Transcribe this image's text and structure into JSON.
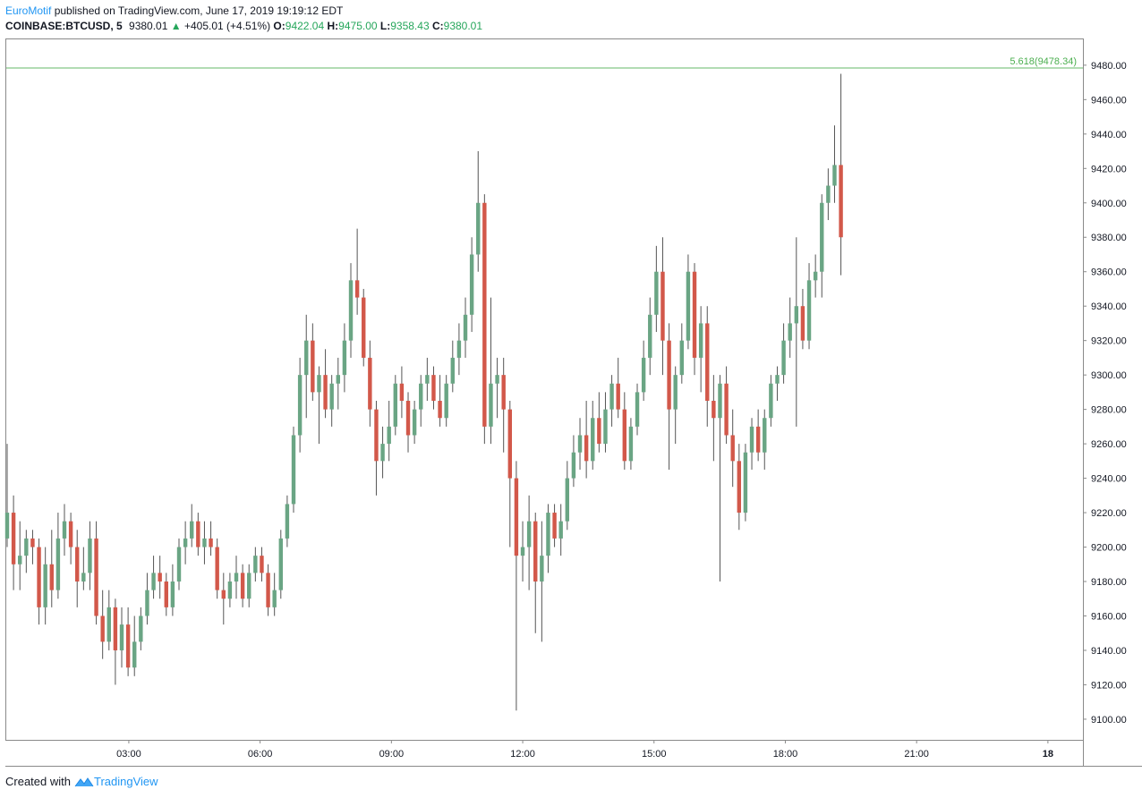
{
  "header": {
    "author": "EuroMotif",
    "published_text": "published on TradingView.com, June 17, 2019 19:19:12 EDT",
    "symbol": "COINBASE:BTCUSD, 5",
    "last_price": "9380.01",
    "change_arrow": "▲",
    "change": "+405.01 (+4.51%)",
    "open_label": "O:",
    "open": "9422.04",
    "high_label": "H:",
    "high": "9475.00",
    "low_label": "L:",
    "low": "9358.43",
    "close_label": "C:",
    "close": "9380.01"
  },
  "footer": {
    "created_text": "Created with",
    "brand": "TradingView"
  },
  "colors": {
    "up": "#6aa584",
    "down": "#d2584a",
    "wick": "#555555",
    "fib_line": "#4caf50",
    "fib_label": "#4caf50",
    "header_author": "#2196f3",
    "header_values": "#26a65b"
  },
  "chart_data": {
    "type": "candlestick",
    "timeframe": "5",
    "y_ticks": [
      9100,
      9120,
      9140,
      9160,
      9180,
      9200,
      9220,
      9240,
      9260,
      9280,
      9300,
      9320,
      9340,
      9360,
      9380,
      9400,
      9420,
      9440,
      9460,
      9480
    ],
    "y_tick_labels": [
      "9100.00",
      "9120.00",
      "9140.00",
      "9160.00",
      "9180.00",
      "9200.00",
      "9220.00",
      "9240.00",
      "9260.00",
      "9280.00",
      "9300.00",
      "9320.00",
      "9340.00",
      "9360.00",
      "9380.00",
      "9400.00",
      "9420.00",
      "9440.00",
      "9460.00",
      "9480.00"
    ],
    "ylim": [
      9088,
      9495
    ],
    "x_ticks": [
      {
        "label": "03:00",
        "hour": 3
      },
      {
        "label": "06:00",
        "hour": 6
      },
      {
        "label": "09:00",
        "hour": 9
      },
      {
        "label": "12:00",
        "hour": 12
      },
      {
        "label": "15:00",
        "hour": 15
      },
      {
        "label": "18:00",
        "hour": 18
      },
      {
        "label": "21:00",
        "hour": 21
      },
      {
        "label": "18",
        "hour": 24
      }
    ],
    "xlim_hours": [
      0.2,
      24.8
    ],
    "fib_level": {
      "label": "5.618(9478.34)",
      "value": 9478.34
    },
    "candles": [
      [
        9205,
        9260,
        9200,
        9220
      ],
      [
        9220,
        9230,
        9175,
        9190
      ],
      [
        9190,
        9215,
        9175,
        9195
      ],
      [
        9195,
        9210,
        9185,
        9205
      ],
      [
        9205,
        9210,
        9190,
        9200
      ],
      [
        9200,
        9205,
        9155,
        9165
      ],
      [
        9165,
        9200,
        9155,
        9190
      ],
      [
        9190,
        9210,
        9165,
        9175
      ],
      [
        9175,
        9220,
        9170,
        9205
      ],
      [
        9205,
        9225,
        9195,
        9215
      ],
      [
        9215,
        9220,
        9190,
        9200
      ],
      [
        9200,
        9210,
        9165,
        9180
      ],
      [
        9180,
        9200,
        9175,
        9185
      ],
      [
        9185,
        9215,
        9175,
        9205
      ],
      [
        9205,
        9215,
        9155,
        9160
      ],
      [
        9160,
        9175,
        9135,
        9145
      ],
      [
        9145,
        9175,
        9140,
        9165
      ],
      [
        9165,
        9170,
        9120,
        9140
      ],
      [
        9140,
        9165,
        9130,
        9155
      ],
      [
        9155,
        9165,
        9125,
        9130
      ],
      [
        9130,
        9160,
        9125,
        9145
      ],
      [
        9145,
        9165,
        9140,
        9160
      ],
      [
        9160,
        9185,
        9155,
        9175
      ],
      [
        9175,
        9195,
        9170,
        9185
      ],
      [
        9185,
        9195,
        9170,
        9180
      ],
      [
        9180,
        9185,
        9160,
        9165
      ],
      [
        9165,
        9190,
        9160,
        9180
      ],
      [
        9180,
        9205,
        9175,
        9200
      ],
      [
        9200,
        9215,
        9190,
        9205
      ],
      [
        9205,
        9225,
        9200,
        9215
      ],
      [
        9215,
        9220,
        9195,
        9200
      ],
      [
        9200,
        9215,
        9190,
        9205
      ],
      [
        9205,
        9215,
        9195,
        9200
      ],
      [
        9200,
        9205,
        9170,
        9175
      ],
      [
        9175,
        9185,
        9155,
        9170
      ],
      [
        9170,
        9185,
        9165,
        9180
      ],
      [
        9180,
        9195,
        9170,
        9185
      ],
      [
        9185,
        9190,
        9165,
        9170
      ],
      [
        9170,
        9190,
        9165,
        9185
      ],
      [
        9185,
        9200,
        9180,
        9195
      ],
      [
        9195,
        9200,
        9180,
        9185
      ],
      [
        9185,
        9190,
        9160,
        9165
      ],
      [
        9165,
        9185,
        9160,
        9175
      ],
      [
        9175,
        9210,
        9170,
        9205
      ],
      [
        9205,
        9230,
        9200,
        9225
      ],
      [
        9225,
        9270,
        9220,
        9265
      ],
      [
        9265,
        9310,
        9255,
        9300
      ],
      [
        9300,
        9335,
        9275,
        9320
      ],
      [
        9320,
        9330,
        9285,
        9290
      ],
      [
        9290,
        9305,
        9260,
        9300
      ],
      [
        9300,
        9315,
        9275,
        9280
      ],
      [
        9280,
        9300,
        9270,
        9295
      ],
      [
        9295,
        9310,
        9280,
        9300
      ],
      [
        9300,
        9330,
        9290,
        9320
      ],
      [
        9320,
        9365,
        9310,
        9355
      ],
      [
        9355,
        9385,
        9335,
        9345
      ],
      [
        9345,
        9350,
        9305,
        9310
      ],
      [
        9310,
        9320,
        9270,
        9280
      ],
      [
        9280,
        9285,
        9230,
        9250
      ],
      [
        9250,
        9270,
        9240,
        9260
      ],
      [
        9260,
        9285,
        9250,
        9270
      ],
      [
        9270,
        9300,
        9265,
        9295
      ],
      [
        9295,
        9305,
        9275,
        9285
      ],
      [
        9285,
        9290,
        9255,
        9265
      ],
      [
        9265,
        9285,
        9260,
        9280
      ],
      [
        9280,
        9300,
        9270,
        9295
      ],
      [
        9295,
        9310,
        9285,
        9300
      ],
      [
        9300,
        9305,
        9280,
        9285
      ],
      [
        9285,
        9300,
        9270,
        9275
      ],
      [
        9275,
        9300,
        9270,
        9295
      ],
      [
        9295,
        9320,
        9290,
        9310
      ],
      [
        9310,
        9330,
        9300,
        9320
      ],
      [
        9320,
        9345,
        9310,
        9335
      ],
      [
        9335,
        9380,
        9325,
        9370
      ],
      [
        9370,
        9430,
        9360,
        9400
      ],
      [
        9400,
        9405,
        9260,
        9270
      ],
      [
        9270,
        9345,
        9260,
        9295
      ],
      [
        9295,
        9310,
        9275,
        9300
      ],
      [
        9300,
        9310,
        9255,
        9280
      ],
      [
        9280,
        9285,
        9200,
        9240
      ],
      [
        9240,
        9250,
        9105,
        9195
      ],
      [
        9195,
        9215,
        9180,
        9200
      ],
      [
        9200,
        9230,
        9175,
        9215
      ],
      [
        9215,
        9220,
        9150,
        9180
      ],
      [
        9180,
        9215,
        9145,
        9195
      ],
      [
        9195,
        9225,
        9185,
        9220
      ],
      [
        9220,
        9225,
        9200,
        9205
      ],
      [
        9205,
        9225,
        9195,
        9215
      ],
      [
        9215,
        9250,
        9210,
        9240
      ],
      [
        9240,
        9265,
        9235,
        9255
      ],
      [
        9255,
        9275,
        9245,
        9265
      ],
      [
        9265,
        9285,
        9240,
        9250
      ],
      [
        9250,
        9285,
        9245,
        9275
      ],
      [
        9275,
        9290,
        9255,
        9260
      ],
      [
        9260,
        9290,
        9255,
        9280
      ],
      [
        9280,
        9300,
        9270,
        9295
      ],
      [
        9295,
        9310,
        9275,
        9280
      ],
      [
        9280,
        9290,
        9245,
        9250
      ],
      [
        9250,
        9275,
        9245,
        9270
      ],
      [
        9270,
        9295,
        9265,
        9290
      ],
      [
        9290,
        9320,
        9285,
        9310
      ],
      [
        9310,
        9345,
        9300,
        9335
      ],
      [
        9335,
        9375,
        9325,
        9360
      ],
      [
        9360,
        9380,
        9300,
        9320
      ],
      [
        9320,
        9330,
        9245,
        9280
      ],
      [
        9280,
        9305,
        9260,
        9300
      ],
      [
        9300,
        9330,
        9295,
        9320
      ],
      [
        9320,
        9370,
        9315,
        9360
      ],
      [
        9360,
        9365,
        9300,
        9310
      ],
      [
        9310,
        9340,
        9290,
        9330
      ],
      [
        9330,
        9340,
        9270,
        9285
      ],
      [
        9285,
        9300,
        9250,
        9275
      ],
      [
        9275,
        9300,
        9180,
        9295
      ],
      [
        9295,
        9305,
        9260,
        9265
      ],
      [
        9265,
        9280,
        9235,
        9250
      ],
      [
        9250,
        9260,
        9210,
        9220
      ],
      [
        9220,
        9260,
        9215,
        9255
      ],
      [
        9255,
        9275,
        9245,
        9270
      ],
      [
        9270,
        9280,
        9250,
        9255
      ],
      [
        9255,
        9280,
        9245,
        9275
      ],
      [
        9275,
        9300,
        9270,
        9295
      ],
      [
        9295,
        9305,
        9285,
        9300
      ],
      [
        9300,
        9330,
        9295,
        9320
      ],
      [
        9320,
        9345,
        9310,
        9330
      ],
      [
        9330,
        9380,
        9270,
        9340
      ],
      [
        9340,
        9350,
        9315,
        9320
      ],
      [
        9320,
        9365,
        9315,
        9355
      ],
      [
        9355,
        9370,
        9345,
        9360
      ],
      [
        9360,
        9405,
        9345,
        9400
      ],
      [
        9400,
        9420,
        9390,
        9410
      ],
      [
        9410,
        9445,
        9400,
        9422
      ],
      [
        9422,
        9475,
        9358,
        9380
      ]
    ]
  }
}
